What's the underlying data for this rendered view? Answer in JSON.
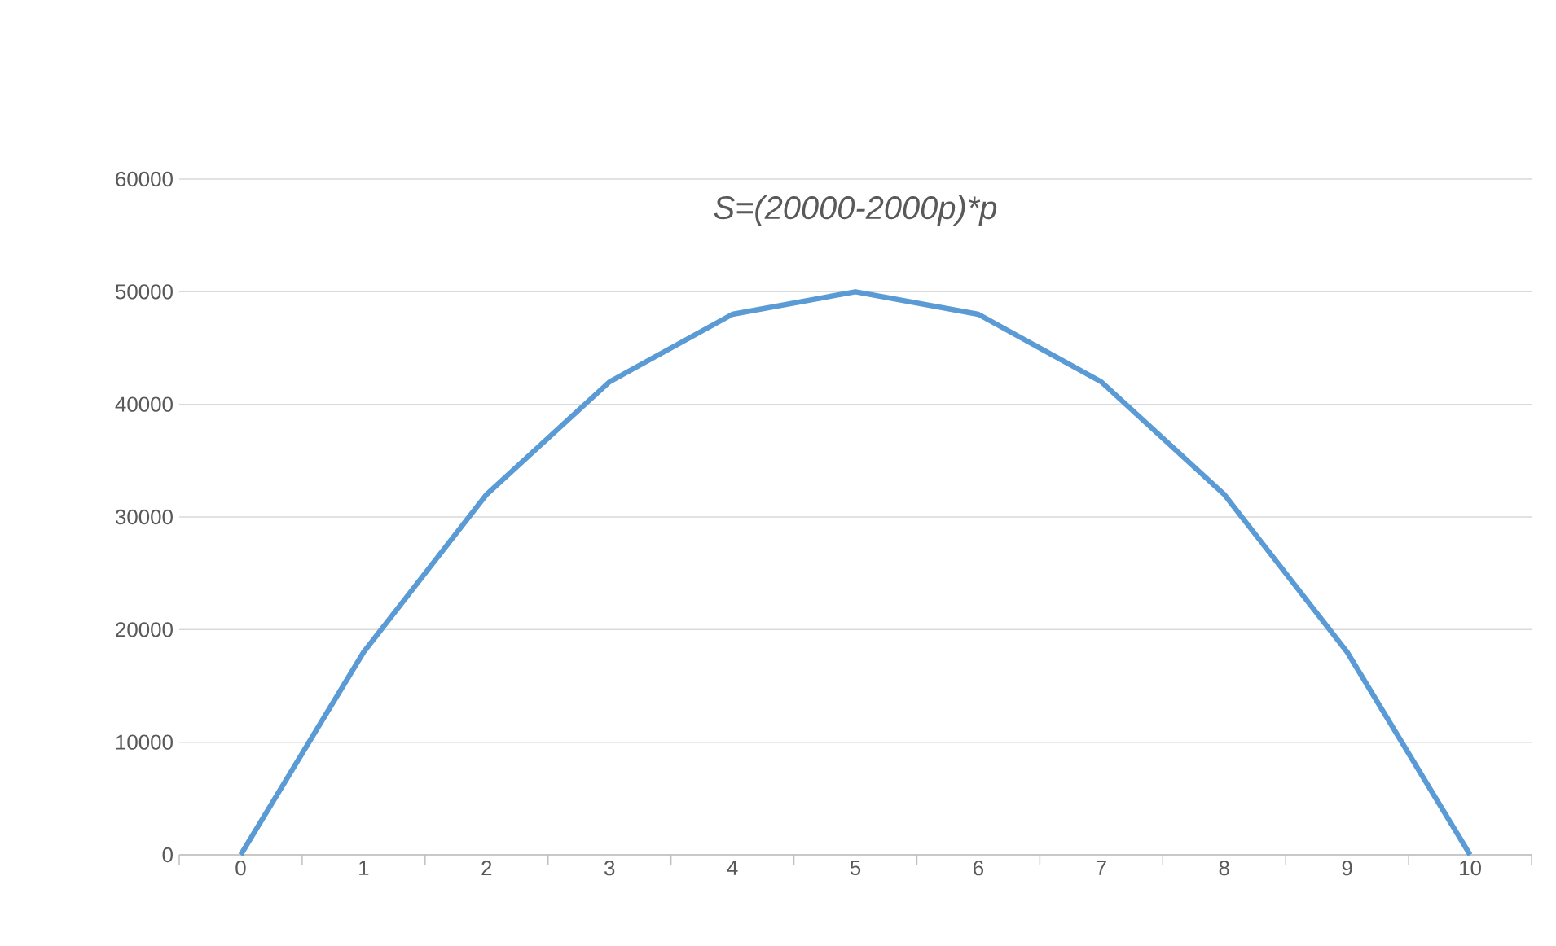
{
  "chart_data": {
    "type": "line",
    "title": "S=(20000-2000p)*p",
    "categories": [
      "0",
      "1",
      "2",
      "3",
      "4",
      "5",
      "6",
      "7",
      "8",
      "9",
      "10"
    ],
    "series": [
      {
        "color": "#5b9bd5",
        "values": [
          0,
          18000,
          32000,
          42000,
          48000,
          50000,
          48000,
          42000,
          32000,
          18000,
          0
        ]
      }
    ],
    "ylim": [
      0,
      60000
    ],
    "yticks": [
      0,
      10000,
      20000,
      30000,
      40000,
      50000,
      60000
    ],
    "grid": "y",
    "marker": "none",
    "line_style": "solid",
    "legend": false
  }
}
